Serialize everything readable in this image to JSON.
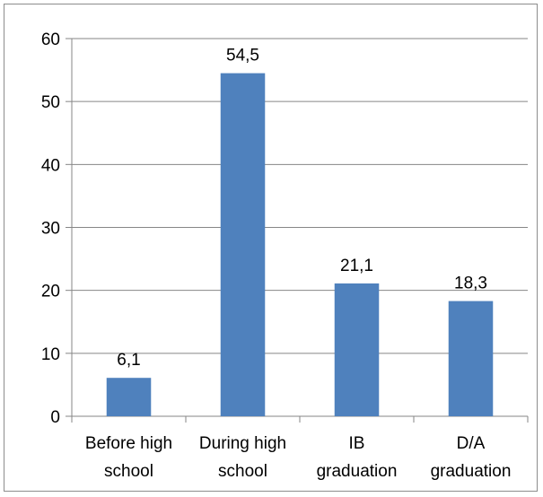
{
  "chart_data": {
    "type": "bar",
    "categories": [
      [
        "Before high",
        "school"
      ],
      [
        "During high",
        "school"
      ],
      [
        "IB",
        "graduation"
      ],
      [
        "D/A",
        "graduation"
      ]
    ],
    "values": [
      6.1,
      54.5,
      21.1,
      18.3
    ],
    "data_labels": [
      "6,1",
      "54,5",
      "21,1",
      "18,3"
    ],
    "yticks": [
      "0",
      "10",
      "20",
      "30",
      "40",
      "50",
      "60"
    ],
    "ylim": [
      0,
      60
    ],
    "grid": true,
    "legend": "none",
    "colors": {
      "bar": "#4f81bd",
      "grid": "#868686",
      "axis": "#868686"
    }
  }
}
